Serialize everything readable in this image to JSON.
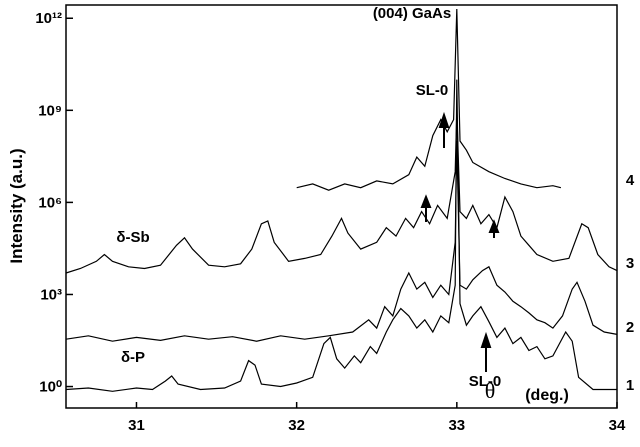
{
  "chart_data": {
    "type": "line",
    "y_label": "Intensity (a.u.)",
    "x_label_symbol": "θ",
    "x_label_unit": "(deg.)",
    "annotations": {
      "gaas": "(004) GaAs",
      "sl0_top": "SL-0",
      "sl0_bottom": "SL-0",
      "sb": "δ-Sb",
      "p": "δ-P"
    },
    "xlim": [
      30.56,
      34.0
    ],
    "xticks": [
      31,
      32,
      33,
      34
    ],
    "ylim": [
      0.2,
      2700000000000
    ],
    "ylog": true,
    "yticks": [
      {
        "value": 1,
        "label": "10⁰"
      },
      {
        "value": 1000,
        "label": "10³"
      },
      {
        "value": 1000000,
        "label": "10⁶"
      },
      {
        "value": 1000000000,
        "label": "10⁹"
      },
      {
        "value": 1000000000000,
        "label": "10¹²"
      }
    ],
    "series": [
      {
        "name": "1",
        "color": "#000000",
        "x": [
          30.56,
          30.7,
          30.85,
          31.0,
          31.1,
          31.18,
          31.22,
          31.26,
          31.4,
          31.55,
          31.65,
          31.7,
          31.74,
          31.78,
          31.9,
          32.0,
          32.1,
          32.17,
          32.21,
          32.25,
          32.3,
          32.36,
          32.4,
          32.46,
          32.5,
          32.56,
          32.6,
          32.65,
          32.7,
          32.75,
          32.8,
          32.85,
          32.9,
          32.95,
          32.99,
          33.0,
          33.02,
          33.06,
          33.1,
          33.15,
          33.2,
          33.25,
          33.3,
          33.35,
          33.4,
          33.45,
          33.5,
          33.55,
          33.6,
          33.68,
          33.72,
          33.76,
          33.85,
          34.0
        ],
        "values": [
          0.8,
          0.9,
          0.7,
          0.9,
          0.8,
          1.5,
          2.2,
          1.2,
          0.8,
          0.9,
          1.5,
          7,
          5,
          1.2,
          1,
          1.3,
          2,
          25,
          40,
          8,
          4,
          10,
          6,
          20,
          12,
          60,
          150,
          350,
          200,
          80,
          150,
          60,
          200,
          120,
          2000,
          10000000000,
          500,
          100,
          200,
          400,
          130,
          40,
          80,
          25,
          40,
          15,
          20,
          8,
          10,
          60,
          30,
          2,
          0.8,
          0.8
        ]
      },
      {
        "name": "2",
        "color": "#000000",
        "x": [
          30.56,
          30.7,
          30.85,
          31.0,
          31.15,
          31.3,
          31.45,
          31.6,
          31.75,
          31.9,
          32.05,
          32.2,
          32.35,
          32.45,
          32.5,
          32.55,
          32.6,
          32.65,
          32.7,
          32.75,
          32.8,
          32.85,
          32.9,
          32.95,
          32.99,
          33.0,
          33.02,
          33.06,
          33.1,
          33.16,
          33.2,
          33.25,
          33.3,
          33.35,
          33.4,
          33.45,
          33.5,
          33.55,
          33.6,
          33.66,
          33.72,
          33.75,
          33.8,
          33.85,
          33.92,
          34.0
        ],
        "values": [
          35,
          45,
          30,
          40,
          32,
          45,
          35,
          42,
          30,
          45,
          35,
          45,
          60,
          150,
          80,
          400,
          200,
          1500,
          5000,
          1500,
          2500,
          800,
          2000,
          1000,
          50000,
          100000000,
          2000,
          1500,
          3000,
          6000,
          8000,
          2000,
          1200,
          600,
          400,
          250,
          150,
          120,
          80,
          200,
          1500,
          2500,
          600,
          100,
          60,
          50
        ]
      },
      {
        "name": "3",
        "color": "#000000",
        "x": [
          30.56,
          30.65,
          30.75,
          30.8,
          30.85,
          30.95,
          31.05,
          31.15,
          31.25,
          31.3,
          31.35,
          31.45,
          31.55,
          31.65,
          31.72,
          31.78,
          31.82,
          31.86,
          31.95,
          32.05,
          32.15,
          32.22,
          32.28,
          32.32,
          32.4,
          32.5,
          32.56,
          32.62,
          32.68,
          32.73,
          32.78,
          32.83,
          32.88,
          32.94,
          32.99,
          33.0,
          33.02,
          33.06,
          33.1,
          33.15,
          33.2,
          33.25,
          33.3,
          33.35,
          33.4,
          33.45,
          33.5,
          33.6,
          33.7,
          33.78,
          33.82,
          33.88,
          33.95,
          34.0
        ],
        "values": [
          5000,
          7000,
          12000,
          20000,
          12000,
          8000,
          7000,
          9000,
          40000,
          70000,
          30000,
          9000,
          8000,
          10000,
          30000,
          200000,
          250000,
          50000,
          12000,
          15000,
          20000,
          80000,
          300000,
          100000,
          30000,
          50000,
          150000,
          80000,
          300000,
          150000,
          500000,
          200000,
          800000,
          300000,
          10000000,
          1000000000,
          500000,
          300000,
          800000,
          200000,
          400000,
          150000,
          1500000,
          500000,
          80000,
          40000,
          20000,
          12000,
          15000,
          200000,
          150000,
          20000,
          8000,
          6000
        ]
      },
      {
        "name": "4",
        "color": "#000000",
        "x": [
          32.0,
          32.1,
          32.2,
          32.3,
          32.4,
          32.5,
          32.6,
          32.7,
          32.75,
          32.8,
          32.85,
          32.9,
          32.94,
          32.98,
          33.0,
          33.02,
          33.06,
          33.1,
          33.2,
          33.3,
          33.4,
          33.5,
          33.6,
          33.65
        ],
        "values": [
          3000000,
          4000000,
          2500000,
          4000000,
          3000000,
          5000000,
          4000000,
          8000000,
          30000000,
          15000000,
          150000000,
          500000000,
          200000000,
          500000000,
          2000000000000,
          100000000,
          50000000,
          20000000,
          10000000,
          6000000,
          4000000,
          3000000,
          3500000,
          3000000
        ]
      }
    ]
  }
}
